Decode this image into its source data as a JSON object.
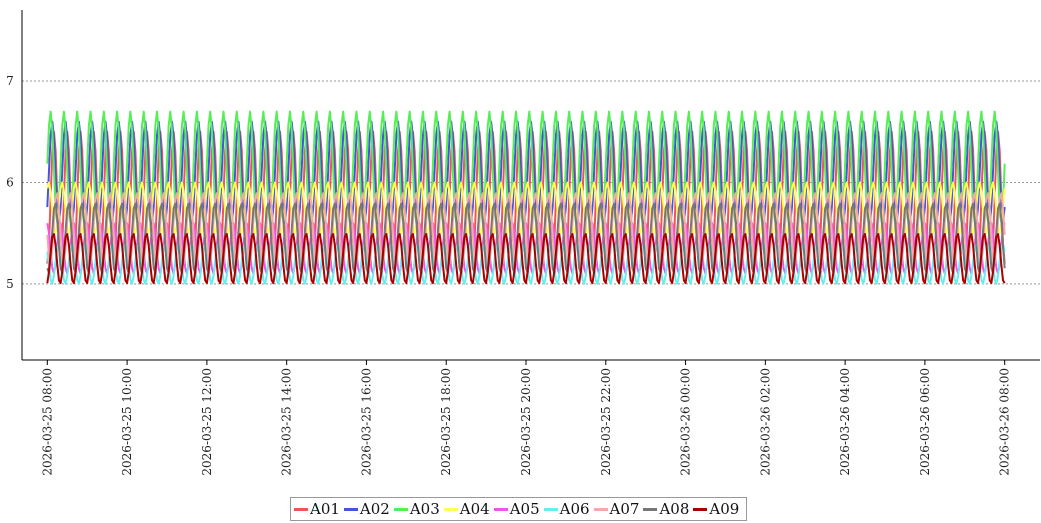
{
  "chart_data": {
    "type": "line",
    "title": "",
    "xlabel": "",
    "ylabel": "",
    "ylim": [
      4.25,
      7.7
    ],
    "yticks": [
      5,
      6,
      7
    ],
    "xlim": [
      "2026-03-25 07:55",
      "2026-03-26 08:05"
    ],
    "xticks": [
      "2026-03-25 08:00",
      "2026-03-25 10:00",
      "2026-03-25 12:00",
      "2026-03-25 14:00",
      "2026-03-25 16:00",
      "2026-03-25 18:00",
      "2026-03-25 20:00",
      "2026-03-25 22:00",
      "2026-03-26 00:00",
      "2026-03-26 02:00",
      "2026-03-26 04:00",
      "2026-03-26 06:00",
      "2026-03-26 08:00"
    ],
    "grid": "horizontal-dashed",
    "legend": "bottom",
    "x_start": "2026-03-25 08:00",
    "x_end": "2026-03-26 08:00",
    "oscillation_period_minutes": 20,
    "series": [
      {
        "name": "A01",
        "color": "#ee5555",
        "min": 5.2,
        "max": 6.5
      },
      {
        "name": "A02",
        "color": "#4455dd",
        "min": 5.6,
        "max": 6.6
      },
      {
        "name": "A03",
        "color": "#55ee55",
        "min": 5.6,
        "max": 6.7
      },
      {
        "name": "A04",
        "color": "#ffff55",
        "min": 5.5,
        "max": 6.0
      },
      {
        "name": "A05",
        "color": "#ee55ee",
        "min": 5.1,
        "max": 5.6
      },
      {
        "name": "A06",
        "color": "#66eeee",
        "min": 5.0,
        "max": 5.4
      },
      {
        "name": "A07",
        "color": "#f4a8a8",
        "min": 5.2,
        "max": 5.9
      },
      {
        "name": "A08",
        "color": "#777777",
        "min": 5.1,
        "max": 5.8
      },
      {
        "name": "A09",
        "color": "#aa0000",
        "min": 5.0,
        "max": 5.5
      }
    ]
  }
}
